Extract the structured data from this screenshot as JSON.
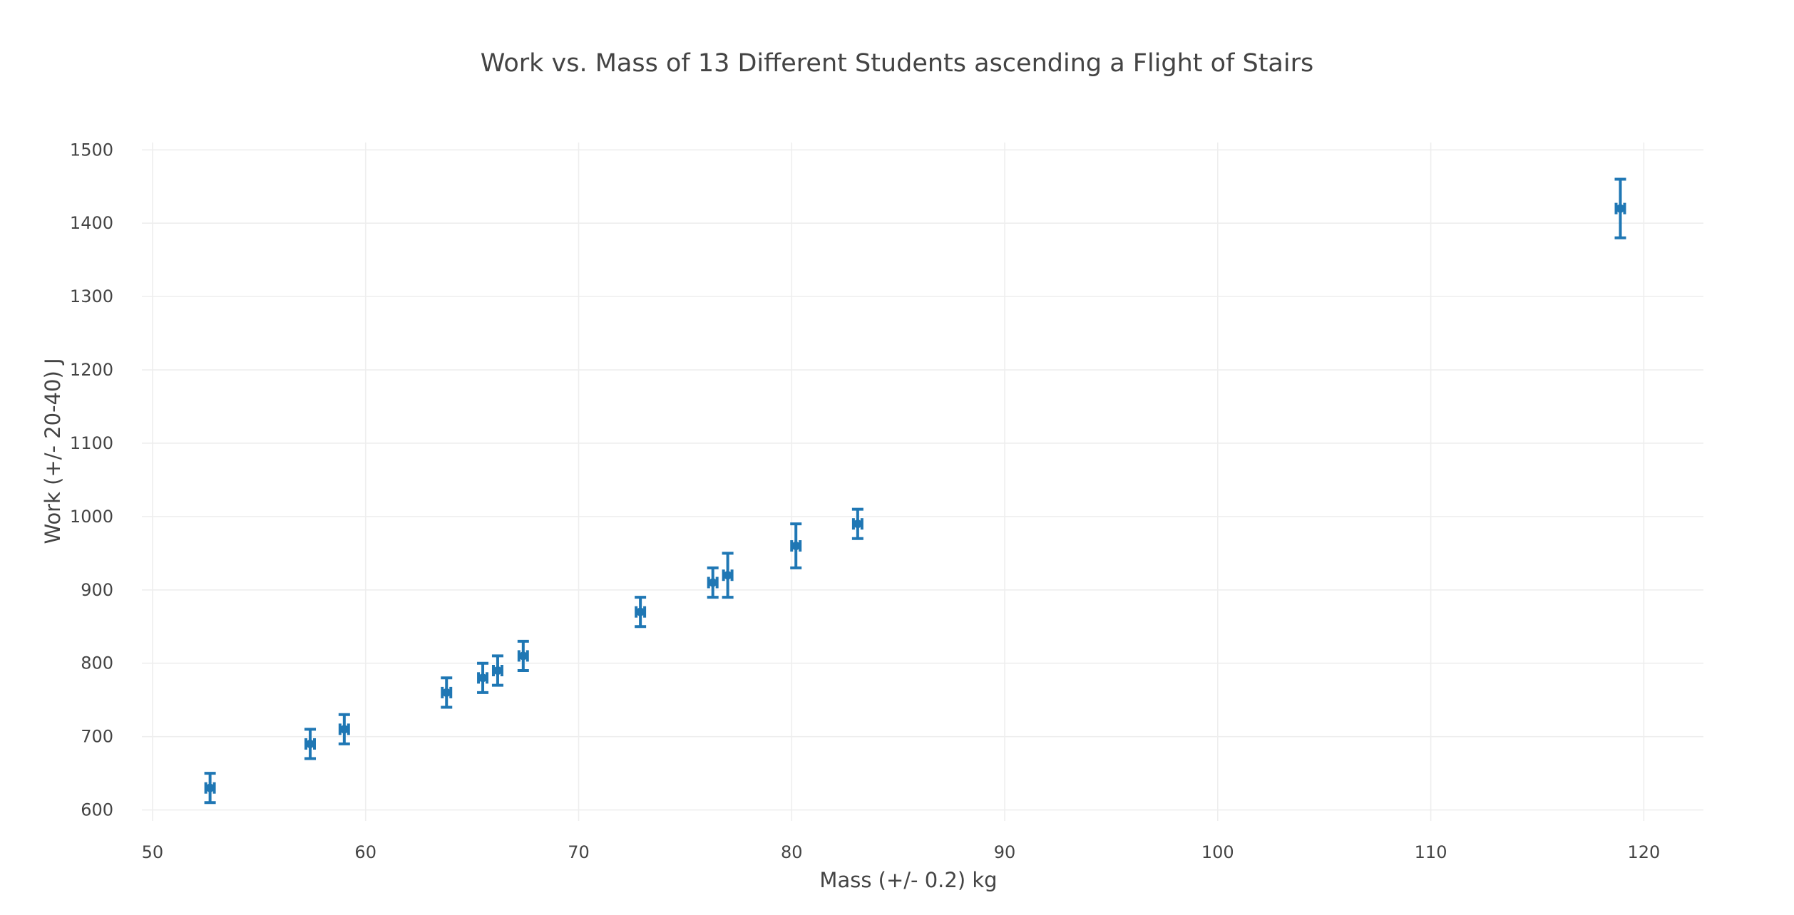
{
  "chart_data": {
    "type": "scatter",
    "title": "Work vs. Mass of 13 Different Students ascending a Flight of Stairs",
    "xlabel": "Mass (+/- 0.2) kg",
    "ylabel": "Work (+/- 20-40) J",
    "xlim": [
      49.5,
      122.8
    ],
    "ylim": [
      585,
      1510
    ],
    "x_ticks": [
      50,
      60,
      70,
      80,
      90,
      100,
      110,
      120
    ],
    "y_ticks": [
      600,
      700,
      800,
      900,
      1000,
      1100,
      1200,
      1300,
      1400,
      1500
    ],
    "grid": true,
    "legend": "none",
    "color": "#1f77b4",
    "series": [
      {
        "x": [
          52.7,
          57.4,
          59.0,
          63.8,
          65.5,
          66.2,
          67.4,
          72.9,
          76.3,
          77.0,
          80.2,
          83.1,
          118.9
        ],
        "y": [
          630,
          690,
          710,
          760,
          780,
          790,
          810,
          870,
          910,
          920,
          960,
          990,
          1420
        ],
        "x_error": [
          0.2,
          0.2,
          0.2,
          0.2,
          0.2,
          0.2,
          0.2,
          0.2,
          0.2,
          0.2,
          0.2,
          0.2,
          0.2
        ],
        "y_error": [
          20,
          20,
          20,
          20,
          20,
          20,
          20,
          20,
          20,
          30,
          30,
          20,
          40
        ]
      }
    ]
  }
}
